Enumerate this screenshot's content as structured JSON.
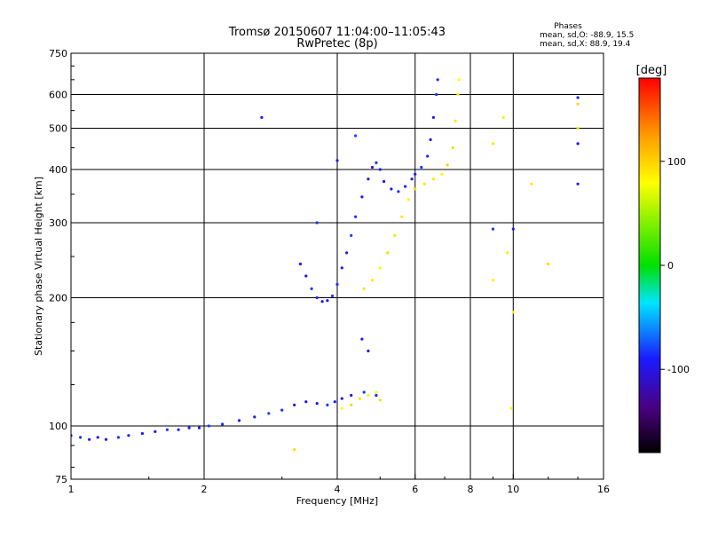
{
  "header": {
    "title": "Tromsø 20150607 11:04:00–11:05:43",
    "subtitle": "RwPretec (8p)",
    "phases_title": "Phases",
    "phases_o": "mean, sd,O: -88.9, 15.5",
    "phases_x": "mean, sd,X:  88.9, 19.4"
  },
  "colorbar": {
    "label": "[deg]",
    "ticks": [
      "100",
      "0",
      "-100"
    ],
    "tick_values": [
      100,
      0,
      -100
    ],
    "range": [
      -180,
      180
    ]
  },
  "chart_data": {
    "type": "scatter",
    "title": "Tromsø 20150607 11:04:00–11:05:43",
    "subtitle": "RwPretec (8p)",
    "xlabel": "Frequency [MHz]",
    "ylabel": "Stationary phase Virtual Height [km]",
    "xscale": "log",
    "yscale": "log",
    "xlim": [
      1,
      16
    ],
    "ylim": [
      75,
      750
    ],
    "grid": true,
    "x_ticks": [
      1,
      2,
      4,
      6,
      8,
      10,
      16
    ],
    "x_tick_labels": [
      "1",
      "2",
      "4",
      "6",
      "8",
      "10",
      "16"
    ],
    "y_ticks": [
      75,
      100,
      200,
      300,
      400,
      500,
      600,
      750
    ],
    "y_tick_labels": [
      "75",
      "100",
      "200",
      "300",
      "400",
      "500",
      "600",
      "750"
    ],
    "color_dimension": "phase [deg]",
    "series": [
      {
        "mode": "O",
        "color_phase": -90,
        "points": [
          [
            1.0,
            95
          ],
          [
            1.05,
            94
          ],
          [
            1.1,
            93
          ],
          [
            1.15,
            94
          ],
          [
            1.2,
            93
          ],
          [
            1.28,
            94
          ],
          [
            1.35,
            95
          ],
          [
            1.45,
            96
          ],
          [
            1.55,
            97
          ],
          [
            1.65,
            98
          ],
          [
            1.75,
            98
          ],
          [
            1.85,
            99
          ],
          [
            1.95,
            99
          ],
          [
            2.05,
            100
          ],
          [
            2.2,
            101
          ],
          [
            2.4,
            103
          ],
          [
            2.6,
            105
          ],
          [
            2.8,
            107
          ],
          [
            3.0,
            109
          ],
          [
            3.2,
            112
          ],
          [
            3.4,
            114
          ],
          [
            3.6,
            113
          ],
          [
            3.8,
            112
          ],
          [
            3.95,
            114
          ],
          [
            4.1,
            116
          ],
          [
            4.3,
            118
          ],
          [
            4.6,
            120
          ],
          [
            4.9,
            118
          ],
          [
            3.3,
            240
          ],
          [
            3.4,
            225
          ],
          [
            3.5,
            210
          ],
          [
            3.6,
            200
          ],
          [
            3.7,
            196
          ],
          [
            3.8,
            197
          ],
          [
            3.9,
            202
          ],
          [
            4.0,
            215
          ],
          [
            4.1,
            235
          ],
          [
            4.2,
            255
          ],
          [
            4.3,
            280
          ],
          [
            4.4,
            310
          ],
          [
            4.55,
            345
          ],
          [
            4.7,
            380
          ],
          [
            4.8,
            405
          ],
          [
            4.9,
            415
          ],
          [
            5.0,
            400
          ],
          [
            5.1,
            375
          ],
          [
            5.3,
            360
          ],
          [
            5.5,
            355
          ],
          [
            5.7,
            365
          ],
          [
            5.9,
            380
          ],
          [
            6.0,
            390
          ],
          [
            6.2,
            405
          ],
          [
            6.4,
            430
          ],
          [
            6.5,
            470
          ],
          [
            6.6,
            530
          ],
          [
            6.7,
            600
          ],
          [
            6.75,
            650
          ],
          [
            2.7,
            530
          ],
          [
            4.0,
            420
          ],
          [
            4.4,
            480
          ],
          [
            3.6,
            300
          ],
          [
            4.55,
            160
          ],
          [
            4.7,
            150
          ],
          [
            10.0,
            290
          ],
          [
            9.0,
            290
          ],
          [
            14.0,
            590
          ],
          [
            14.0,
            460
          ],
          [
            14.0,
            370
          ]
        ]
      },
      {
        "mode": "X",
        "color_phase": 90,
        "points": [
          [
            4.1,
            110
          ],
          [
            4.3,
            112
          ],
          [
            4.5,
            116
          ],
          [
            4.7,
            118
          ],
          [
            4.9,
            120
          ],
          [
            5.0,
            115
          ],
          [
            4.6,
            210
          ],
          [
            4.8,
            220
          ],
          [
            5.0,
            235
          ],
          [
            5.2,
            255
          ],
          [
            5.4,
            280
          ],
          [
            5.6,
            310
          ],
          [
            5.8,
            340
          ],
          [
            6.0,
            360
          ],
          [
            6.3,
            370
          ],
          [
            6.6,
            380
          ],
          [
            6.9,
            390
          ],
          [
            7.1,
            410
          ],
          [
            7.3,
            450
          ],
          [
            7.4,
            520
          ],
          [
            7.5,
            600
          ],
          [
            7.55,
            650
          ],
          [
            3.2,
            88
          ],
          [
            9.0,
            460
          ],
          [
            9.5,
            530
          ],
          [
            9.9,
            110
          ],
          [
            12.0,
            240
          ],
          [
            11.0,
            370
          ],
          [
            9.0,
            220
          ],
          [
            10.0,
            185
          ],
          [
            14.0,
            570
          ],
          [
            14.0,
            500
          ],
          [
            9.7,
            255
          ]
        ]
      }
    ]
  }
}
